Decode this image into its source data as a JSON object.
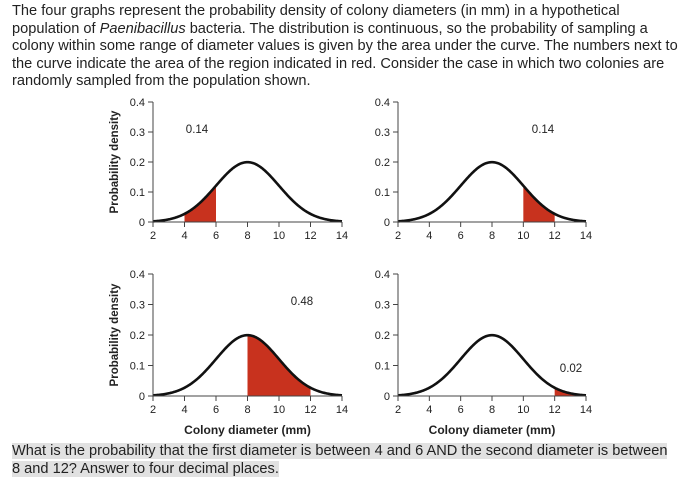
{
  "intro_parts": [
    {
      "text": "The four graphs represent the probability density of colony diameters (in mm) in a hypothetical population of "
    },
    {
      "text": "Paenibacillus",
      "italic": true
    },
    {
      "text": " bacteria. The distribution is continuous, so the probability of sampling a colony within some range of diameter values is given by the area under the curve. The numbers next to the curve indicate the area of the region indicated in red. Consider the case in which two colonies are randomly sampled from the population shown."
    }
  ],
  "question": "What is the probability that the first diameter is between 4 and 6 AND the second diameter is between 8 and 12? Answer to four decimal places.",
  "colors": {
    "curve": "#111111",
    "shade": "#c8321e",
    "axis": "#444444"
  },
  "axis_labels": {
    "ylabel": "Probability density",
    "xlabel": "Colony diameter (mm)"
  },
  "chart_data": [
    {
      "type": "area",
      "panel": "top-left",
      "distribution": "normal",
      "mean": 8,
      "sd": 2,
      "xlim": [
        2,
        14
      ],
      "ylim": [
        0,
        0.4
      ],
      "xticks": [
        2,
        4,
        6,
        8,
        10,
        12,
        14
      ],
      "yticks": [
        0,
        0.1,
        0.2,
        0.3,
        0.4
      ],
      "tick_labels_x": [
        "2",
        "4",
        "6",
        "8",
        "10",
        "12",
        "14"
      ],
      "tick_labels_y": [
        "0",
        "0.1",
        "0.2",
        "0.3",
        "0.4"
      ],
      "shaded": [
        4,
        6
      ],
      "annotation": "0.14",
      "xlabel": "",
      "ylabel": "Probability density"
    },
    {
      "type": "area",
      "panel": "top-right",
      "distribution": "normal",
      "mean": 8,
      "sd": 2,
      "xlim": [
        2,
        14
      ],
      "ylim": [
        0,
        0.4
      ],
      "xticks": [
        2,
        4,
        6,
        8,
        10,
        12,
        14
      ],
      "yticks": [
        0,
        0.1,
        0.2,
        0.3,
        0.4
      ],
      "tick_labels_x": [
        "2",
        "4",
        "6",
        "8",
        "10",
        "12",
        "14"
      ],
      "tick_labels_y": [
        "0",
        "0.1",
        "0.2",
        "0.3",
        "0.4"
      ],
      "shaded": [
        10,
        12
      ],
      "annotation": "0.14",
      "xlabel": "",
      "ylabel": ""
    },
    {
      "type": "area",
      "panel": "bottom-left",
      "distribution": "normal",
      "mean": 8,
      "sd": 2,
      "xlim": [
        2,
        14
      ],
      "ylim": [
        0,
        0.4
      ],
      "xticks": [
        2,
        4,
        6,
        8,
        10,
        12,
        14
      ],
      "yticks": [
        0,
        0.1,
        0.2,
        0.3,
        0.4
      ],
      "tick_labels_x": [
        "2",
        "4",
        "6",
        "8",
        "10",
        "12",
        "14"
      ],
      "tick_labels_y": [
        "0",
        "0.1",
        "0.2",
        "0.3",
        "0.4"
      ],
      "shaded": [
        8,
        12
      ],
      "annotation": "0.48",
      "xlabel": "Colony diameter (mm)",
      "ylabel": "Probability density"
    },
    {
      "type": "area",
      "panel": "bottom-right",
      "distribution": "normal",
      "mean": 8,
      "sd": 2,
      "xlim": [
        2,
        14
      ],
      "ylim": [
        0,
        0.4
      ],
      "xticks": [
        2,
        4,
        6,
        8,
        10,
        12,
        14
      ],
      "yticks": [
        0,
        0.1,
        0.2,
        0.3,
        0.4
      ],
      "tick_labels_x": [
        "2",
        "4",
        "6",
        "8",
        "10",
        "12",
        "14"
      ],
      "tick_labels_y": [
        "0",
        "0.1",
        "0.2",
        "0.3",
        "0.4"
      ],
      "shaded": [
        12,
        14
      ],
      "annotation": "0.02",
      "xlabel": "Colony diameter (mm)",
      "ylabel": ""
    }
  ]
}
